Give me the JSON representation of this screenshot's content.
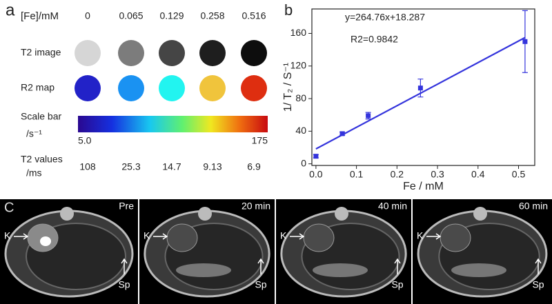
{
  "panel_a": {
    "label": "a",
    "fe_label": "[Fe]/mM",
    "concentrations": [
      "0",
      "0.065",
      "0.129",
      "0.258",
      "0.516"
    ],
    "t2_label": "T2 image",
    "t2_colors": [
      "#d6d6d6",
      "#7c7c7c",
      "#454545",
      "#1e1e1e",
      "#0d0d0d"
    ],
    "r2_label": "R2 map",
    "r2_colors": [
      "#2222c8",
      "#1a92f2",
      "#22f4f0",
      "#f0c43c",
      "#de2e10"
    ],
    "scale_label": "Scale bar",
    "scale_unit": "/s⁻¹",
    "scale_min": "5.0",
    "scale_max": "175",
    "t2_values_label": "T2 values",
    "t2_values_unit": "/ms",
    "t2_values": [
      "108",
      "25.3",
      "14.7",
      "9.13",
      "6.9"
    ]
  },
  "chart_data": {
    "type": "scatter",
    "panel_label": "b",
    "x_label": "Fe / mM",
    "y_label": "1/ T₂ / S⁻¹",
    "x": [
      0,
      0.065,
      0.129,
      0.258,
      0.516
    ],
    "series": [
      {
        "color": "#3434dc",
        "values": [
          9.3,
          37,
          59,
          93,
          150
        ],
        "errors": [
          2,
          2,
          4,
          11,
          38
        ]
      }
    ],
    "fit": {
      "slope": 264.76,
      "intercept": 18.287,
      "label": "y=264.76x+18.287",
      "r2_label": "R2=0.9842"
    },
    "xlim": [
      -0.01,
      0.54
    ],
    "ylim": [
      -2,
      190
    ],
    "xticks": [
      {
        "value": 0,
        "label": "0.0"
      },
      {
        "value": 0.1,
        "label": "0.1"
      },
      {
        "value": 0.2,
        "label": "0.2"
      },
      {
        "value": 0.3,
        "label": "0.3"
      },
      {
        "value": 0.4,
        "label": "0.4"
      },
      {
        "value": 0.5,
        "label": "0.5"
      }
    ],
    "yticks": [
      0,
      40,
      80,
      120,
      160
    ]
  },
  "panel_c": {
    "label": "C",
    "images": [
      {
        "time": "Pre",
        "kidney": "K",
        "spleen": "Sp"
      },
      {
        "time": "20 min",
        "kidney": "K",
        "spleen": "Sp"
      },
      {
        "time": "40 min",
        "kidney": "K",
        "spleen": "Sp"
      },
      {
        "time": "60 min",
        "kidney": "K",
        "spleen": "Sp"
      }
    ]
  }
}
